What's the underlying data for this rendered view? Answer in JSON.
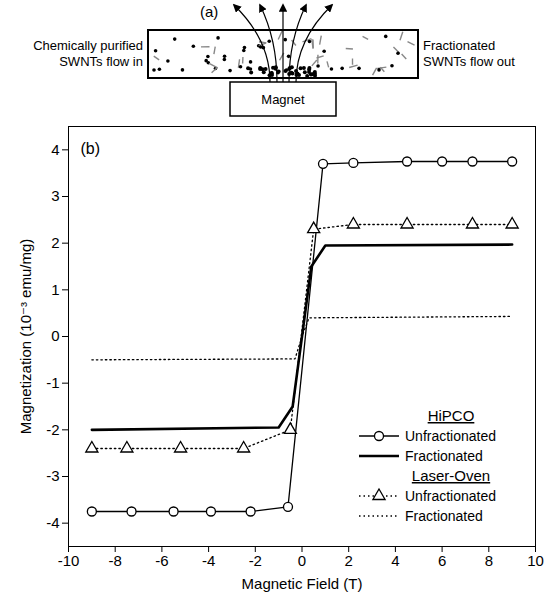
{
  "panel_a": {
    "label": "(a)",
    "inlet": "Chemically purified SWNTs flow in",
    "outlet": "Fractionated SWNTs flow out",
    "magnet": "Magnet"
  },
  "chart_data": {
    "type": "line",
    "panel_label": "(b)",
    "x_label": "Magnetic Field (T)",
    "y_label": "Magnetization (10⁻³ emu/mg)",
    "xlim": [
      -10,
      10
    ],
    "xticks": [
      -10,
      -8,
      -6,
      -4,
      -2,
      0,
      2,
      4,
      6,
      8,
      10
    ],
    "ylim": [
      -4.5,
      4.5
    ],
    "yticks": [
      -4,
      -3,
      -2,
      -1,
      0,
      1,
      2,
      3,
      4
    ],
    "legend": "lower right",
    "series": [
      {
        "name": "Unfractionated",
        "group": "HiPCO",
        "color": "#000000",
        "marker": "circle",
        "line_style": "solid",
        "x": [
          -9,
          -7.3,
          -5.5,
          -3.9,
          -2.2,
          -0.6,
          0.9,
          2.2,
          4.5,
          6,
          7.3,
          9
        ],
        "values": [
          -3.75,
          -3.75,
          -3.75,
          -3.75,
          -3.75,
          -3.65,
          3.7,
          3.72,
          3.75,
          3.75,
          3.75,
          3.75
        ]
      },
      {
        "name": "Fractionated",
        "group": "HiPCO",
        "color": "#000000",
        "line_style": "thick",
        "x": [
          -9,
          -1,
          -0.4,
          0,
          0.4,
          1,
          9
        ],
        "values": [
          -2.0,
          -1.95,
          -1.5,
          0,
          1.5,
          1.95,
          1.97
        ]
      },
      {
        "name": "Unfractionated",
        "group": "Laser-Oven",
        "color": "#000000",
        "marker": "triangle",
        "line_style": "dotted",
        "x": [
          -9,
          -7.5,
          -5.2,
          -2.5,
          -0.5,
          0.5,
          2.2,
          4.5,
          7.3,
          9
        ],
        "values": [
          -2.4,
          -2.4,
          -2.4,
          -2.4,
          -2.0,
          2.3,
          2.4,
          2.4,
          2.4,
          2.4
        ]
      },
      {
        "name": "Fractionated",
        "group": "Laser-Oven",
        "color": "#000000",
        "line_style": "dotted",
        "x": [
          -9,
          -0.3,
          0,
          0.3,
          9
        ],
        "values": [
          -0.5,
          -0.48,
          0,
          0.4,
          0.43
        ]
      }
    ]
  }
}
